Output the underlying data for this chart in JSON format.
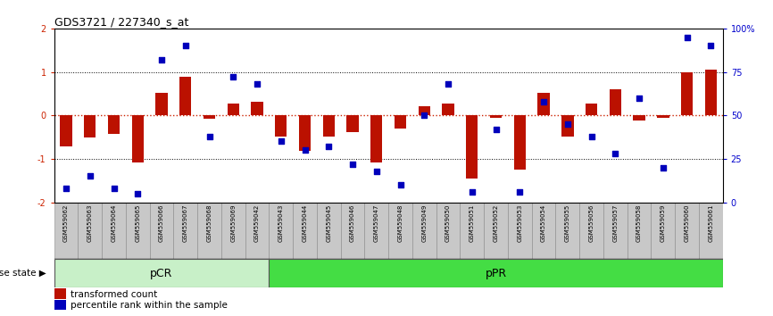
{
  "title": "GDS3721 / 227340_s_at",
  "samples": [
    "GSM559062",
    "GSM559063",
    "GSM559064",
    "GSM559065",
    "GSM559066",
    "GSM559067",
    "GSM559068",
    "GSM559069",
    "GSM559042",
    "GSM559043",
    "GSM559044",
    "GSM559045",
    "GSM559046",
    "GSM559047",
    "GSM559048",
    "GSM559049",
    "GSM559050",
    "GSM559051",
    "GSM559052",
    "GSM559053",
    "GSM559054",
    "GSM559055",
    "GSM559056",
    "GSM559057",
    "GSM559058",
    "GSM559059",
    "GSM559060",
    "GSM559061"
  ],
  "transformed_count": [
    -0.72,
    -0.5,
    -0.42,
    -1.08,
    0.52,
    0.88,
    -0.07,
    0.28,
    0.32,
    -0.48,
    -0.82,
    -0.48,
    -0.38,
    -1.08,
    -0.3,
    0.2,
    0.28,
    -1.45,
    -0.05,
    -1.25,
    0.52,
    -0.48,
    0.28,
    0.6,
    -0.12,
    -0.05,
    1.0,
    1.05
  ],
  "percentile_rank": [
    8,
    15,
    8,
    5,
    82,
    90,
    38,
    72,
    68,
    35,
    30,
    32,
    22,
    18,
    10,
    50,
    68,
    6,
    42,
    6,
    58,
    45,
    38,
    28,
    60,
    20,
    95,
    90
  ],
  "pCR_count": 9,
  "pPR_count": 19,
  "bar_color": "#bb1100",
  "dot_color": "#0000bb",
  "ylim": [
    -2,
    2
  ],
  "yticks_left": [
    -2,
    -1,
    0,
    1,
    2
  ],
  "yticks_right": [
    0,
    25,
    50,
    75,
    100
  ],
  "dotted_lines": [
    -1,
    0,
    1
  ],
  "legend_transformed": "transformed count",
  "legend_percentile": "percentile rank within the sample",
  "group_label": "disease state",
  "pCR_label": "pCR",
  "pPR_label": "pPR",
  "pCR_color": "#c8f0c8",
  "pPR_color": "#44dd44",
  "background_color": "#ffffff",
  "tick_label_color_left": "#cc2200",
  "tick_label_color_right": "#0000cc",
  "sample_box_color": "#c8c8c8",
  "sample_box_edge": "#888888"
}
